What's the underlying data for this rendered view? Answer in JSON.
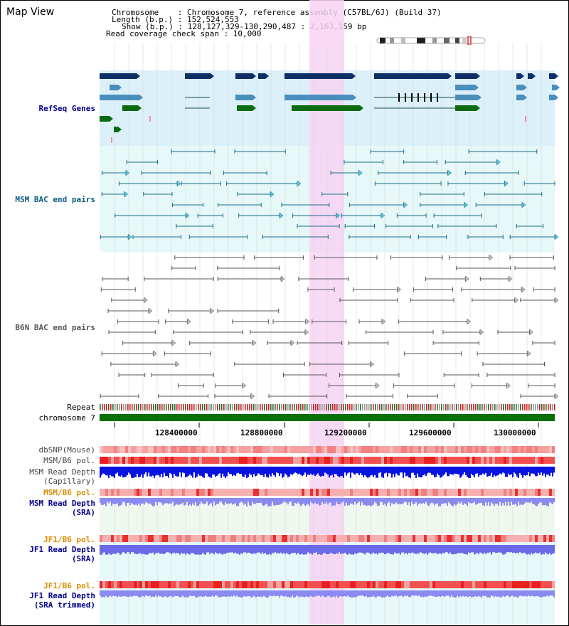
{
  "title": "Map View",
  "info": {
    "chromosome": "Chromosome    : Chromosome 7, reference assembly (C57BL/6J) (Build 37)",
    "length": "Length (b.p.) : 152,524,553",
    "show": "Show (b.p.) : 128,127,329-130,290,487 : 2,163,159 bp",
    "coverage": "Read coverage check span : 10,000"
  },
  "tracks": {
    "refseq": "RefSeq Genes",
    "msm_bac": "MSM BAC end pairs",
    "b6n_bac": "B6N BAC end pairs",
    "repeat": "Repeat",
    "chromosome": "chromosome 7",
    "dbsnp": "dbSNP(Mouse)",
    "msm_b6_pol1": "MSM/B6 pol.",
    "msm_depth_cap_1": "MSM Read Depth",
    "msm_depth_cap_2": "(Capillary)",
    "msm_b6_pol2": "MSM/B6 pol.",
    "msm_depth_sra_1": "MSM Read Depth",
    "msm_depth_sra_2": "(SRA)",
    "jf1_b6_pol1": "JF1/B6 pol.",
    "jf1_depth_sra_1": "JF1 Read Depth",
    "jf1_depth_sra_2": "(SRA)",
    "jf1_b6_pol2": "JF1/B6 pol.",
    "jf1_depth_trim_1": "JF1 Read Depth",
    "jf1_depth_trim_2": "(SRA trimmed)"
  },
  "axis_ticks": [
    "128400000",
    "128800000",
    "129200000",
    "129600000",
    "130000000"
  ],
  "colors": {
    "refseq_bg": "#dcf0fa",
    "msm_bac_bg": "#e6f8f8",
    "highlight": "#f7d3f3",
    "gene_dark": "#0d2f66",
    "gene_light": "#4a8ebb",
    "gene_green": "#0c6b10",
    "msm_bac_line": "#1a6b8c",
    "b6n_bac_line": "#555555",
    "chromosome_bar": "#087008",
    "label_blue": "#00008b",
    "label_teal": "#0a5a80",
    "label_orange": "#d98c00",
    "label_gray": "#555555"
  }
}
